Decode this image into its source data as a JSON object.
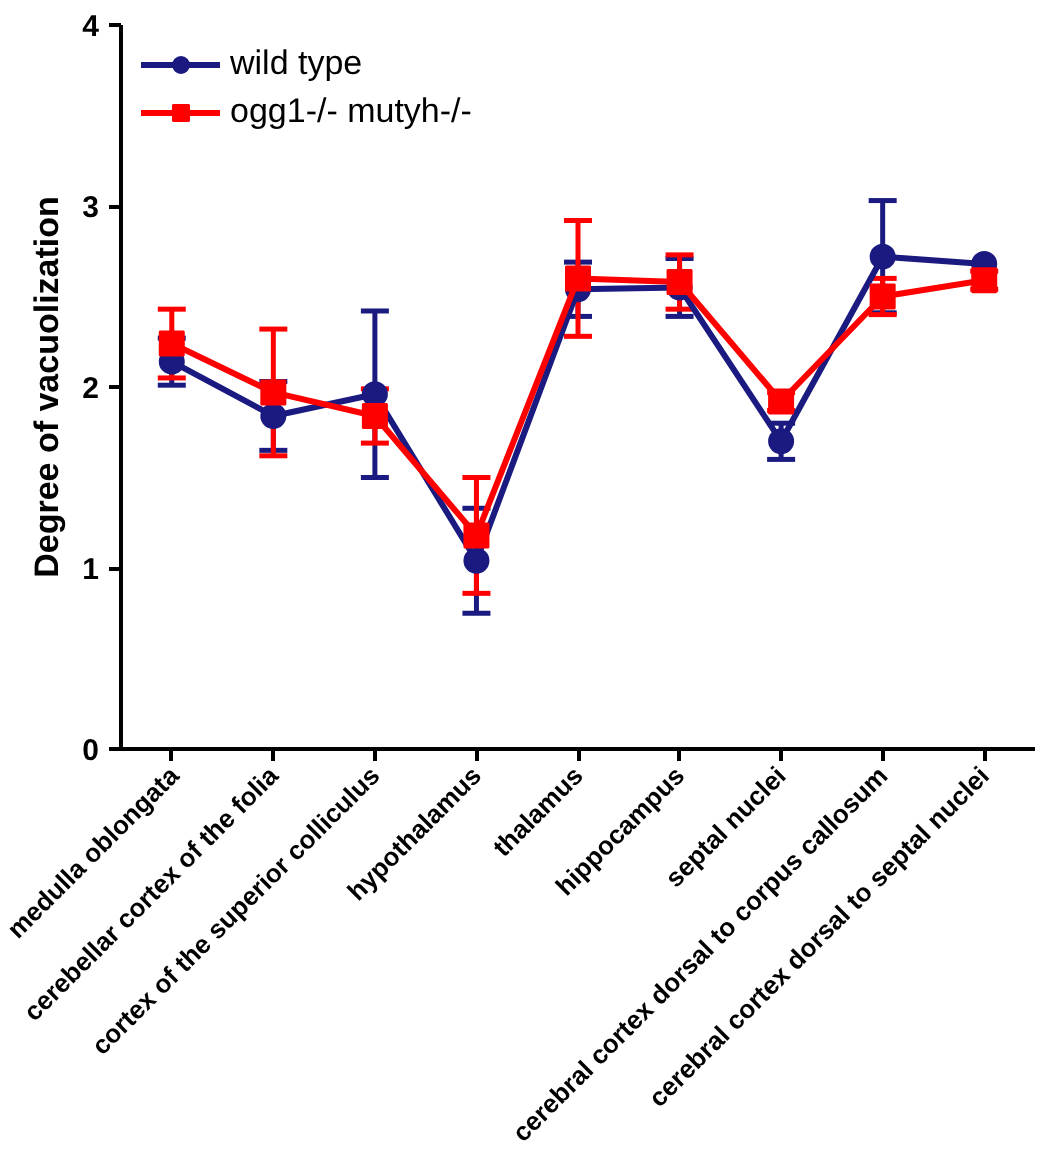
{
  "chart_data": {
    "type": "line",
    "ylabel": "Degree of vacuolization",
    "categories": [
      "medulla oblongata",
      "cerebellar cortex of the folia",
      "cortex of the superior colliculus",
      "hypothalamus",
      "thalamus",
      "hippocampus",
      "septal nuclei",
      "cerebral cortex dorsal to corpus callosum",
      "cerebral cortex dorsal to septal nuclei"
    ],
    "ylim": [
      0,
      4
    ],
    "yticks": [
      0,
      1,
      2,
      3,
      4
    ],
    "grid": false,
    "legend": "top left",
    "series": [
      {
        "name": "wild type",
        "color": "#1a1a80",
        "marker": "circle",
        "values": [
          2.14,
          1.84,
          1.96,
          1.04,
          2.54,
          2.55,
          1.7,
          2.72,
          2.68
        ],
        "errors": [
          0.13,
          0.19,
          0.46,
          0.29,
          0.15,
          0.16,
          0.1,
          0.31,
          null
        ]
      },
      {
        "name": "ogg1-/- mutyh-/-",
        "color": "#ff0000",
        "marker": "square",
        "values": [
          2.24,
          1.97,
          1.84,
          1.18,
          2.6,
          2.58,
          1.92,
          2.5,
          2.59
        ],
        "errors": [
          0.19,
          0.35,
          0.15,
          0.32,
          0.32,
          0.15,
          0.05,
          0.1,
          0.05
        ]
      }
    ]
  }
}
